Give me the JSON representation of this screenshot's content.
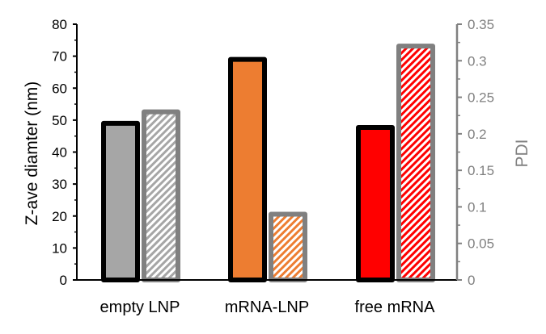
{
  "chart_data": {
    "type": "bar",
    "categories": [
      "empty LNP",
      "mRNA-LNP",
      "free mRNA"
    ],
    "series": [
      {
        "name": "Z-ave diameter",
        "axis": "left",
        "values": [
          49,
          69,
          47.7
        ],
        "colors": [
          "#a6a6a6",
          "#ed7d31",
          "#ff0000"
        ],
        "outline": "#000000"
      },
      {
        "name": "PDI",
        "axis": "right",
        "values": [
          0.23,
          0.09,
          0.32
        ],
        "colors": [
          "#a6a6a6",
          "#ed7d31",
          "#ff0000"
        ],
        "outline": "#808080",
        "pattern": "hatched"
      }
    ],
    "ylabel": "Z-ave diamter (nm)",
    "ylabel_right": "PDI",
    "ylim": [
      0,
      80
    ],
    "ylim_right": [
      0,
      0.35
    ],
    "yticks": [
      "0",
      "10",
      "20",
      "30",
      "40",
      "50",
      "60",
      "70",
      "80"
    ],
    "yticks_right": [
      "0",
      "0.05",
      "0.1",
      "0.15",
      "0.2",
      "0.25",
      "0.3",
      "0.35"
    ],
    "right_axis_color": "#808080",
    "grid": false
  }
}
